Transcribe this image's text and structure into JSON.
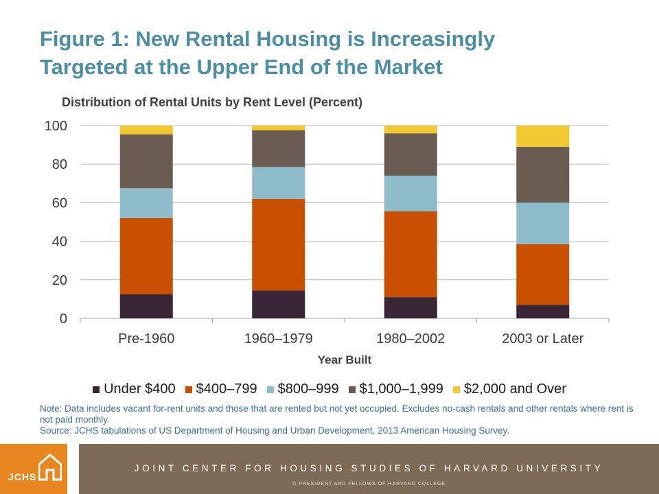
{
  "slide": {
    "title_line1": "Figure 1: New Rental Housing is Increasingly",
    "title_line2": "Targeted at the Upper End of the Market",
    "note": "Note: Data includes vacant for-rent units and those that are rented but not yet occupied. Excludes no-cash rentals and other rentals where rent is not paid monthly.",
    "source": "Source: JCHS tabulations of US Department of Housing and Urban Development, 2013 American Housing Survey."
  },
  "footer": {
    "logo_text": "JCHS",
    "organization": "JOINT CENTER FOR HOUSING STUDIES OF HARVARD UNIVERSITY",
    "copyright": "© PRESIDENT AND FELLOWS OF HARVARD COLLEGE",
    "logo_color": "#e8861f",
    "bar_color": "#7d6b55"
  },
  "chart_data": {
    "type": "bar",
    "stacked": true,
    "title": "Distribution of Rental Units by Rent Level (Percent)",
    "xlabel": "Year Built",
    "ylabel": "",
    "ylim": [
      0,
      100
    ],
    "yticks": [
      "0",
      "20",
      "40",
      "60",
      "80",
      "100"
    ],
    "grid": true,
    "legend_position": "bottom",
    "categories": [
      "Pre-1960",
      "1960–1979",
      "1980–2002",
      "2003 or Later"
    ],
    "series": [
      {
        "name": "Under $400",
        "color": "#3a2535",
        "values": [
          12.5,
          14.5,
          11,
          7
        ]
      },
      {
        "name": "$400–799",
        "color": "#c95000",
        "values": [
          39.5,
          47.5,
          44.5,
          31.5
        ]
      },
      {
        "name": "$800–999",
        "color": "#8fbccb",
        "values": [
          15.5,
          16.5,
          18.5,
          21.5
        ]
      },
      {
        "name": "$1,000–1,999",
        "color": "#6b5c52",
        "values": [
          28,
          19,
          22,
          29
        ]
      },
      {
        "name": "$2,000 and Over",
        "color": "#f2c830",
        "values": [
          4.5,
          2.5,
          4,
          11
        ]
      }
    ]
  }
}
